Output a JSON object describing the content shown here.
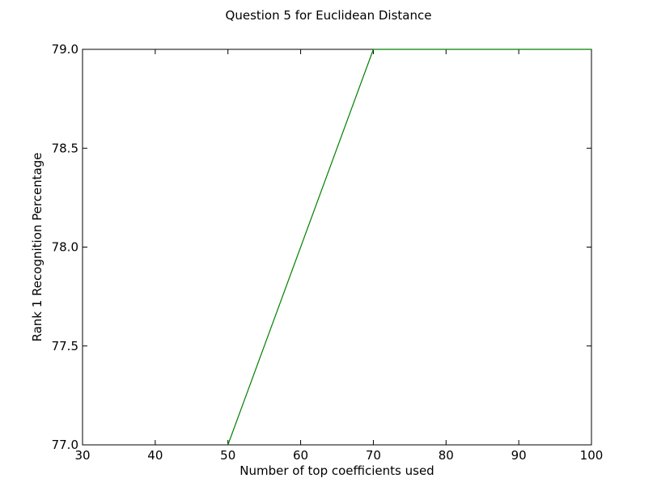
{
  "chart_data": {
    "type": "line",
    "title": "Question 5 for Euclidean Distance",
    "xlabel": "Number of top coefficients used",
    "ylabel": "Rank 1 Recognition Percentage",
    "xlim": [
      30,
      100
    ],
    "ylim": [
      77.0,
      79.0
    ],
    "xticks": [
      "30",
      "40",
      "50",
      "60",
      "70",
      "80",
      "90",
      "100"
    ],
    "yticks": [
      "77.0",
      "77.5",
      "78.0",
      "78.5",
      "79.0"
    ],
    "grid": false,
    "series": [
      {
        "color": "#008000",
        "x": [
          50,
          70,
          100
        ],
        "y": [
          77.0,
          79.0,
          79.0
        ]
      }
    ]
  }
}
